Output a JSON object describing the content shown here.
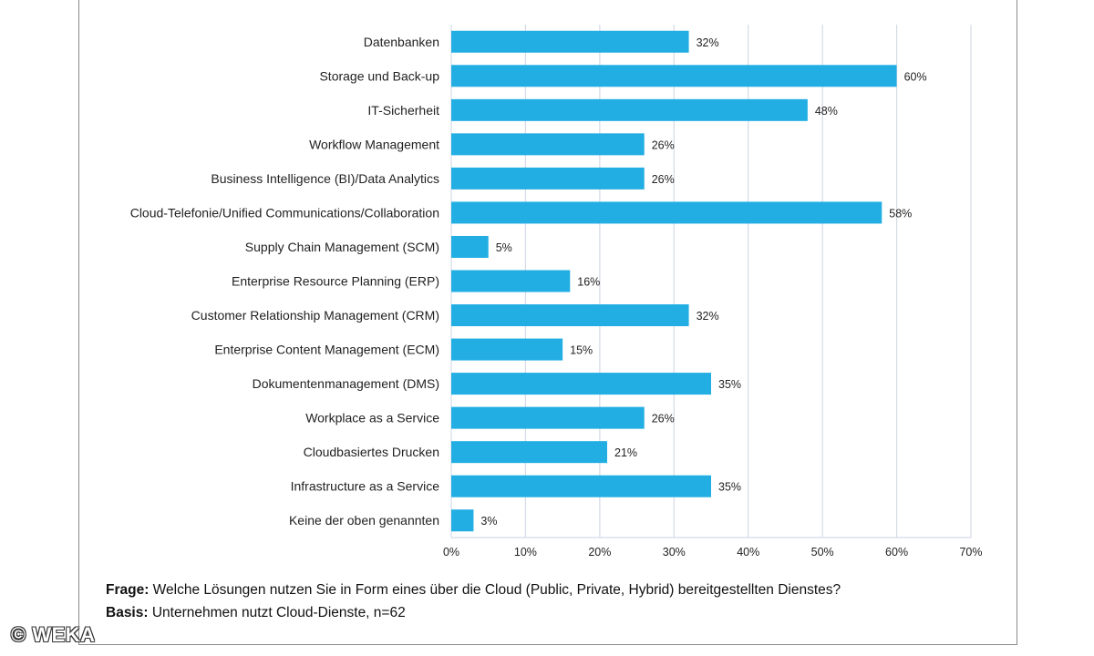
{
  "chart_data": {
    "type": "bar",
    "orientation": "horizontal",
    "categories": [
      "Datenbanken",
      "Storage und Back-up",
      "IT-Sicherheit",
      "Workflow Management",
      "Business Intelligence (BI)/Data Analytics",
      "Cloud-Telefonie/Unified Communications/Collaboration",
      "Supply Chain Management (SCM)",
      "Enterprise Resource Planning (ERP)",
      "Customer Relationship Management (CRM)",
      "Enterprise Content Management (ECM)",
      "Dokumentenmanagement (DMS)",
      "Workplace as a Service",
      "Cloudbasiertes Drucken",
      "Infrastructure as a Service",
      "Keine der oben genannten"
    ],
    "values": [
      32,
      60,
      48,
      26,
      26,
      58,
      5,
      16,
      32,
      15,
      35,
      26,
      21,
      35,
      3
    ],
    "value_labels": [
      "32%",
      "60%",
      "48%",
      "26%",
      "26%",
      "58%",
      "5%",
      "16%",
      "32%",
      "15%",
      "35%",
      "26%",
      "21%",
      "35%",
      "3%"
    ],
    "xlim": [
      0,
      70
    ],
    "xticks": [
      0,
      10,
      20,
      30,
      40,
      50,
      60,
      70
    ],
    "xtick_labels": [
      "0%",
      "10%",
      "20%",
      "30%",
      "40%",
      "50%",
      "60%",
      "70%"
    ],
    "grid": "vertical",
    "bar_color": "#22aee3",
    "grid_color": "#d4dbe6",
    "title": "",
    "xlabel": "",
    "ylabel": ""
  },
  "footer": {
    "question_label": "Frage:",
    "question_text": " Welche Lösungen nutzen Sie in Form eines über die Cloud (Public, Private, Hybrid) bereitgestellten Dienstes?",
    "basis_label": "Basis:",
    "basis_text": " Unternehmen nutzt Cloud-Dienste, n=62"
  },
  "watermark": "© WEKA"
}
